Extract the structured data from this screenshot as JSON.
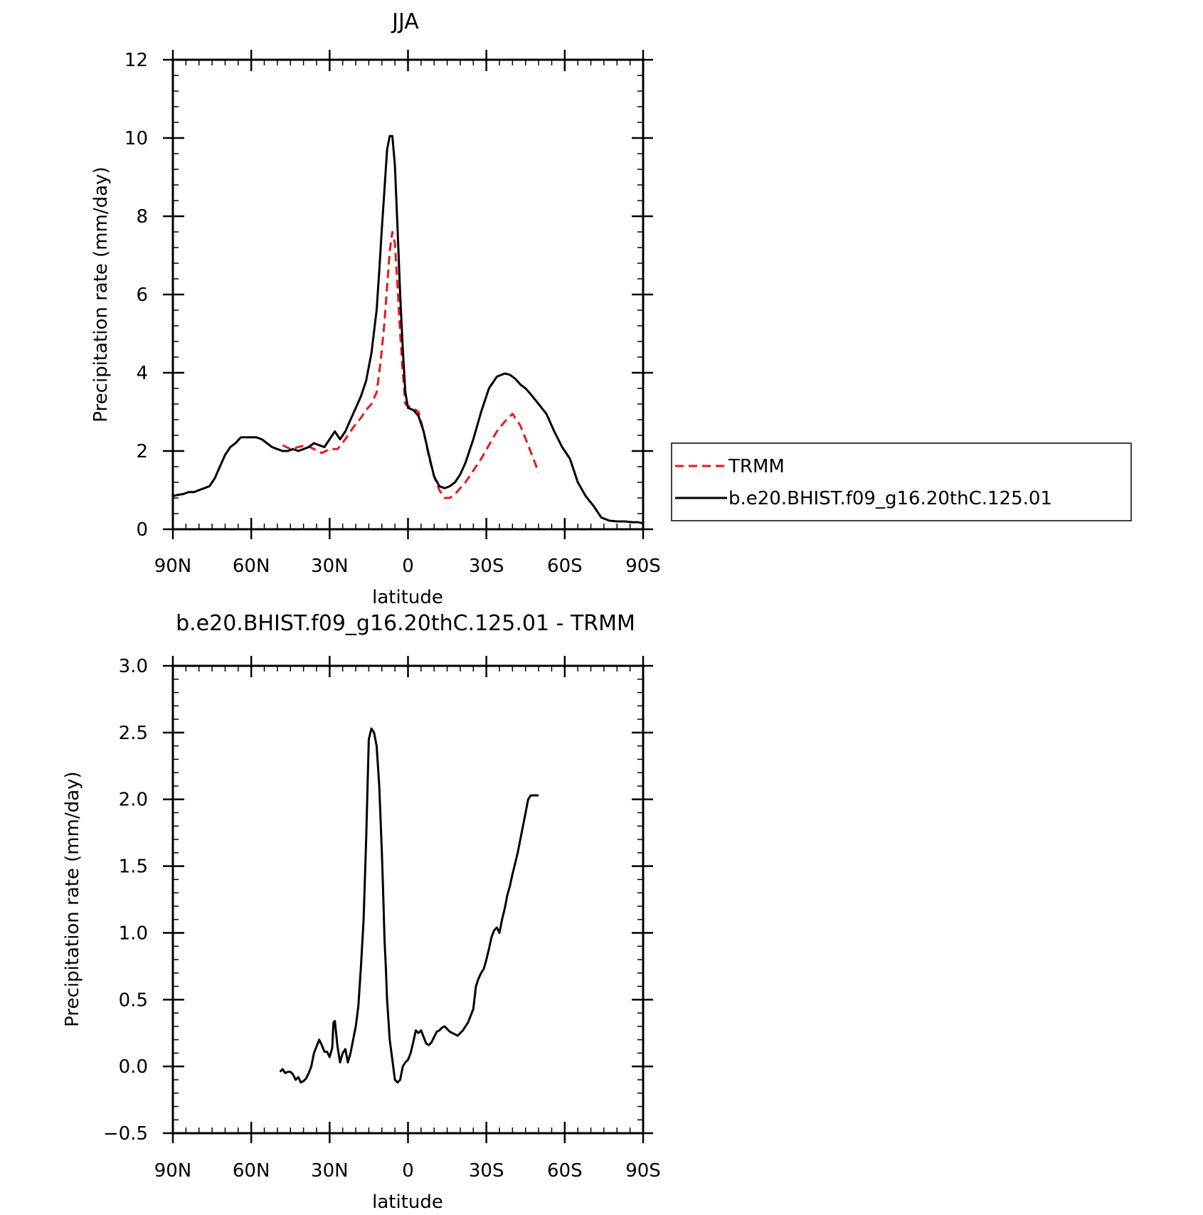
{
  "chart_data": [
    {
      "type": "line",
      "title": "JJA",
      "xlabel": "latitude",
      "ylabel": "Precipitation rate (mm/day)",
      "xlim": [
        90,
        -90
      ],
      "ylim": [
        0,
        12
      ],
      "x_ticks": [
        90,
        60,
        30,
        0,
        -30,
        -60,
        -90
      ],
      "x_tick_labels": [
        "90N",
        "60N",
        "30N",
        "0",
        "30S",
        "60S",
        "90S"
      ],
      "y_ticks": [
        0,
        2,
        4,
        6,
        8,
        10,
        12
      ],
      "y_tick_labels": [
        "0",
        "2",
        "4",
        "6",
        "8",
        "10",
        "12"
      ],
      "grid": false,
      "legend_position": "right",
      "series": [
        {
          "name": "TRMM",
          "color": "#e8191b",
          "dash": "dashed",
          "x": [
            48,
            45,
            42,
            39,
            36,
            33,
            30,
            27,
            24,
            21,
            18,
            16,
            14,
            12,
            11,
            10,
            9,
            8,
            7,
            6,
            5,
            4,
            3,
            2,
            1,
            0,
            -2,
            -4,
            -6,
            -8,
            -10,
            -12,
            -14,
            -16,
            -18,
            -20,
            -22,
            -25,
            -28,
            -31,
            -34,
            -37,
            -40,
            -43,
            -46,
            -50
          ],
          "y": [
            2.15,
            2.05,
            2.1,
            2.15,
            2.05,
            1.95,
            2.05,
            2.05,
            2.3,
            2.6,
            2.85,
            3.05,
            3.2,
            3.5,
            4.0,
            4.6,
            5.3,
            6.2,
            7.1,
            7.6,
            7.3,
            6.2,
            5.0,
            4.0,
            3.2,
            3.15,
            3.1,
            3.0,
            2.5,
            1.85,
            1.35,
            1.0,
            0.8,
            0.8,
            0.9,
            1.05,
            1.2,
            1.5,
            1.8,
            2.15,
            2.5,
            2.75,
            2.95,
            2.65,
            2.15,
            1.45
          ]
        },
        {
          "name": "b.e20.BHIST.f09_g16.20thC.125.01",
          "color": "#000000",
          "dash": "solid",
          "x": [
            90,
            88,
            86,
            84,
            82,
            80,
            78,
            76,
            74,
            72,
            70,
            68,
            66,
            64,
            62,
            60,
            58,
            56,
            54,
            52,
            50,
            48,
            46,
            44,
            42,
            40,
            38,
            36,
            34,
            32,
            30,
            28,
            27,
            26,
            24,
            22,
            20,
            18,
            16,
            14,
            12,
            11,
            10,
            9,
            8,
            7,
            6,
            5,
            4,
            3,
            2,
            1,
            0,
            -2,
            -4,
            -6,
            -8,
            -10,
            -12,
            -14,
            -16,
            -18,
            -20,
            -22,
            -25,
            -28,
            -31,
            -34,
            -37,
            -39,
            -41,
            -43,
            -45,
            -47,
            -50,
            -53,
            -56,
            -59,
            -62,
            -65,
            -68,
            -71,
            -74,
            -77,
            -80,
            -83,
            -86,
            -88,
            -90
          ],
          "y": [
            0.85,
            0.88,
            0.9,
            0.95,
            0.95,
            1.0,
            1.05,
            1.1,
            1.3,
            1.6,
            1.9,
            2.1,
            2.2,
            2.35,
            2.35,
            2.35,
            2.35,
            2.3,
            2.2,
            2.1,
            2.05,
            2.0,
            2.0,
            2.05,
            2.0,
            2.05,
            2.1,
            2.2,
            2.15,
            2.1,
            2.3,
            2.5,
            2.4,
            2.3,
            2.5,
            2.8,
            3.1,
            3.4,
            3.8,
            4.5,
            5.6,
            6.6,
            7.7,
            8.7,
            9.7,
            10.05,
            10.05,
            9.3,
            7.7,
            6.0,
            4.6,
            3.5,
            3.1,
            3.05,
            2.9,
            2.5,
            1.9,
            1.35,
            1.1,
            1.05,
            1.1,
            1.2,
            1.4,
            1.7,
            2.3,
            3.0,
            3.6,
            3.9,
            3.98,
            3.95,
            3.85,
            3.7,
            3.6,
            3.45,
            3.2,
            2.95,
            2.5,
            2.1,
            1.8,
            1.2,
            0.85,
            0.6,
            0.3,
            0.22,
            0.2,
            0.2,
            0.18,
            0.18,
            0.15
          ]
        }
      ]
    },
    {
      "type": "line",
      "title": "b.e20.BHIST.f09_g16.20thC.125.01 - TRMM",
      "xlabel": "latitude",
      "ylabel": "Precipitation rate (mm/day)",
      "xlim": [
        90,
        -90
      ],
      "ylim": [
        -0.5,
        3.0
      ],
      "x_ticks": [
        90,
        60,
        30,
        0,
        -30,
        -60,
        -90
      ],
      "x_tick_labels": [
        "90N",
        "60N",
        "30N",
        "0",
        "30S",
        "60S",
        "90S"
      ],
      "y_ticks": [
        -0.5,
        0.0,
        0.5,
        1.0,
        1.5,
        2.0,
        2.5,
        3.0
      ],
      "y_tick_labels": [
        "−0.5",
        "0.0",
        "0.5",
        "1.0",
        "1.5",
        "2.0",
        "2.5",
        "3.0"
      ],
      "grid": false,
      "series": [
        {
          "color": "#000000",
          "dash": "solid",
          "x": [
            49,
            48,
            47,
            46,
            45,
            44,
            43,
            42,
            41,
            40,
            39,
            38,
            37,
            36,
            35,
            34,
            33,
            32,
            31,
            30,
            29,
            28.5,
            28,
            27,
            26,
            25,
            24,
            23,
            22,
            21,
            20,
            19,
            18,
            17,
            16,
            15,
            14,
            13,
            12,
            11,
            10,
            9.5,
            9,
            8.5,
            8,
            7,
            6,
            5,
            4,
            3,
            2,
            1,
            0,
            -1,
            -2,
            -3,
            -4,
            -5,
            -6,
            -7,
            -8,
            -9,
            -10,
            -11,
            -12,
            -13,
            -14,
            -15,
            -16,
            -17,
            -18,
            -19,
            -20,
            -21,
            -22,
            -23,
            -24,
            -25,
            -26,
            -27,
            -28,
            -29,
            -30,
            -31,
            -32,
            -33,
            -34,
            -35,
            -36,
            -37,
            -38,
            -39,
            -40,
            -41,
            -42,
            -43,
            -44,
            -45,
            -46,
            -47,
            -48,
            -49,
            -50
          ],
          "y": [
            -0.04,
            -0.02,
            -0.05,
            -0.04,
            -0.04,
            -0.06,
            -0.1,
            -0.08,
            -0.12,
            -0.11,
            -0.09,
            -0.05,
            0.0,
            0.1,
            0.15,
            0.2,
            0.16,
            0.11,
            0.11,
            0.07,
            0.14,
            0.33,
            0.34,
            0.15,
            0.03,
            0.1,
            0.13,
            0.03,
            0.1,
            0.2,
            0.3,
            0.45,
            0.75,
            1.1,
            1.7,
            2.45,
            2.53,
            2.5,
            2.4,
            2.1,
            1.6,
            1.3,
            0.95,
            0.75,
            0.5,
            0.2,
            0.05,
            -0.1,
            -0.12,
            -0.1,
            0.0,
            0.03,
            0.05,
            0.1,
            0.18,
            0.27,
            0.25,
            0.27,
            0.22,
            0.17,
            0.16,
            0.18,
            0.22,
            0.26,
            0.27,
            0.29,
            0.3,
            0.28,
            0.26,
            0.25,
            0.24,
            0.23,
            0.25,
            0.27,
            0.3,
            0.33,
            0.38,
            0.43,
            0.6,
            0.66,
            0.7,
            0.73,
            0.8,
            0.88,
            0.97,
            1.02,
            1.04,
            1.0,
            1.1,
            1.18,
            1.28,
            1.35,
            1.44,
            1.52,
            1.6,
            1.7,
            1.8,
            1.9,
            2.0,
            2.03,
            2.03,
            2.03,
            2.03
          ]
        }
      ]
    }
  ]
}
